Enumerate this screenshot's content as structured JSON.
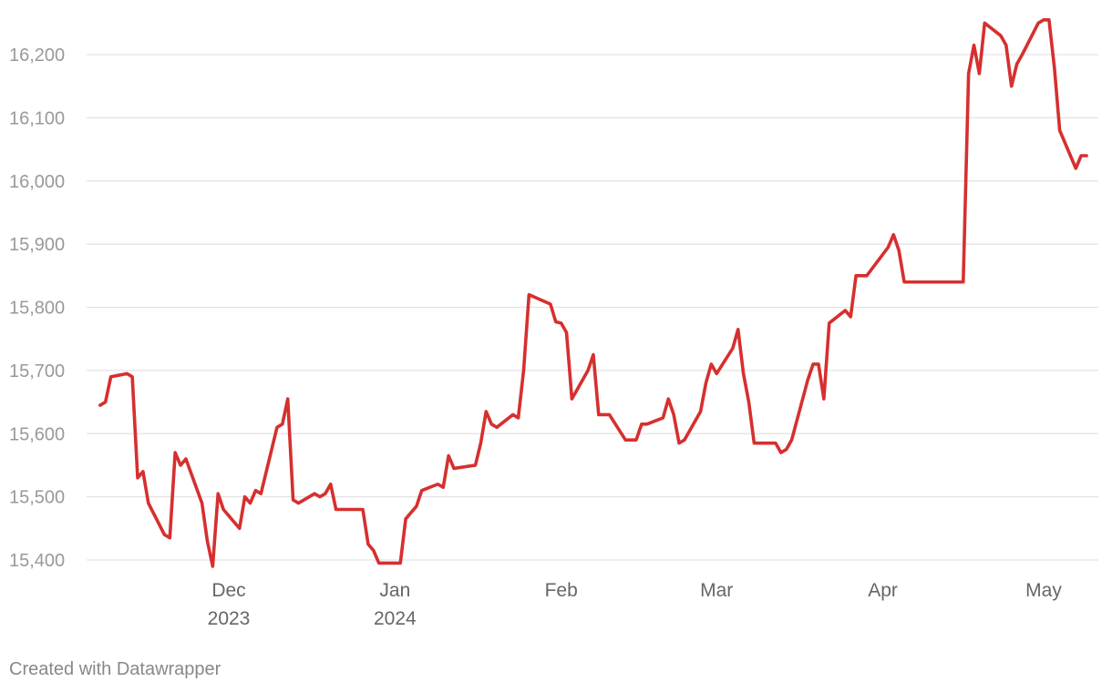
{
  "chart_data": {
    "type": "line",
    "title": "",
    "xlabel": "",
    "ylabel": "",
    "ylim": [
      15400,
      16250
    ],
    "y_ticks": [
      15400,
      15500,
      15600,
      15700,
      15800,
      15900,
      16000,
      16100,
      16200
    ],
    "y_tick_labels": [
      "15,400",
      "15,500",
      "15,600",
      "15,700",
      "15,800",
      "15,900",
      "16,000",
      "16,100",
      "16,200"
    ],
    "x_ticks": [
      {
        "date": "2023-12-01",
        "line1": "Dec",
        "line2": "2023"
      },
      {
        "date": "2024-01-01",
        "line1": "Jan",
        "line2": "2024"
      },
      {
        "date": "2024-02-01",
        "line1": "Feb",
        "line2": ""
      },
      {
        "date": "2024-03-01",
        "line1": "Mar",
        "line2": ""
      },
      {
        "date": "2024-04-01",
        "line1": "Apr",
        "line2": ""
      },
      {
        "date": "2024-05-01",
        "line1": "May",
        "line2": ""
      }
    ],
    "grid": true,
    "legend": "none",
    "series": [
      {
        "color": "#d62f2f",
        "points": [
          [
            "2023-11-07",
            15645
          ],
          [
            "2023-11-08",
            15650
          ],
          [
            "2023-11-09",
            15690
          ],
          [
            "2023-11-12",
            15695
          ],
          [
            "2023-11-13",
            15690
          ],
          [
            "2023-11-14",
            15530
          ],
          [
            "2023-11-15",
            15540
          ],
          [
            "2023-11-16",
            15490
          ],
          [
            "2023-11-19",
            15440
          ],
          [
            "2023-11-20",
            15435
          ],
          [
            "2023-11-21",
            15570
          ],
          [
            "2023-11-22",
            15550
          ],
          [
            "2023-11-23",
            15560
          ],
          [
            "2023-11-26",
            15490
          ],
          [
            "2023-11-27",
            15430
          ],
          [
            "2023-11-28",
            15390
          ],
          [
            "2023-11-29",
            15505
          ],
          [
            "2023-11-30",
            15480
          ],
          [
            "2023-12-03",
            15450
          ],
          [
            "2023-12-04",
            15500
          ],
          [
            "2023-12-05",
            15490
          ],
          [
            "2023-12-06",
            15510
          ],
          [
            "2023-12-07",
            15505
          ],
          [
            "2023-12-10",
            15610
          ],
          [
            "2023-12-11",
            15615
          ],
          [
            "2023-12-12",
            15655
          ],
          [
            "2023-12-13",
            15495
          ],
          [
            "2023-12-14",
            15490
          ],
          [
            "2023-12-17",
            15505
          ],
          [
            "2023-12-18",
            15500
          ],
          [
            "2023-12-19",
            15505
          ],
          [
            "2023-12-20",
            15520
          ],
          [
            "2023-12-21",
            15480
          ],
          [
            "2023-12-26",
            15480
          ],
          [
            "2023-12-27",
            15425
          ],
          [
            "2023-12-28",
            15415
          ],
          [
            "2023-12-29",
            15395
          ],
          [
            "2024-01-02",
            15395
          ],
          [
            "2024-01-03",
            15465
          ],
          [
            "2024-01-04",
            15475
          ],
          [
            "2024-01-05",
            15485
          ],
          [
            "2024-01-06",
            15510
          ],
          [
            "2024-01-09",
            15520
          ],
          [
            "2024-01-10",
            15515
          ],
          [
            "2024-01-11",
            15565
          ],
          [
            "2024-01-12",
            15545
          ],
          [
            "2024-01-16",
            15550
          ],
          [
            "2024-01-17",
            15585
          ],
          [
            "2024-01-18",
            15635
          ],
          [
            "2024-01-19",
            15615
          ],
          [
            "2024-01-20",
            15610
          ],
          [
            "2024-01-23",
            15630
          ],
          [
            "2024-01-24",
            15625
          ],
          [
            "2024-01-25",
            15700
          ],
          [
            "2024-01-26",
            15820
          ],
          [
            "2024-01-30",
            15805
          ],
          [
            "2024-01-31",
            15777
          ],
          [
            "2024-02-01",
            15775
          ],
          [
            "2024-02-02",
            15760
          ],
          [
            "2024-02-03",
            15655
          ],
          [
            "2024-02-06",
            15700
          ],
          [
            "2024-02-07",
            15725
          ],
          [
            "2024-02-08",
            15630
          ],
          [
            "2024-02-10",
            15630
          ],
          [
            "2024-02-13",
            15590
          ],
          [
            "2024-02-15",
            15590
          ],
          [
            "2024-02-16",
            15615
          ],
          [
            "2024-02-17",
            15615
          ],
          [
            "2024-02-20",
            15625
          ],
          [
            "2024-02-21",
            15655
          ],
          [
            "2024-02-22",
            15630
          ],
          [
            "2024-02-23",
            15585
          ],
          [
            "2024-02-24",
            15590
          ],
          [
            "2024-02-27",
            15635
          ],
          [
            "2024-02-28",
            15680
          ],
          [
            "2024-02-29",
            15710
          ],
          [
            "2024-03-01",
            15695
          ],
          [
            "2024-03-04",
            15735
          ],
          [
            "2024-03-05",
            15765
          ],
          [
            "2024-03-06",
            15695
          ],
          [
            "2024-03-07",
            15650
          ],
          [
            "2024-03-08",
            15585
          ],
          [
            "2024-03-12",
            15585
          ],
          [
            "2024-03-13",
            15570
          ],
          [
            "2024-03-14",
            15575
          ],
          [
            "2024-03-15",
            15590
          ],
          [
            "2024-03-18",
            15685
          ],
          [
            "2024-03-19",
            15710
          ],
          [
            "2024-03-20",
            15710
          ],
          [
            "2024-03-21",
            15655
          ],
          [
            "2024-03-22",
            15775
          ],
          [
            "2024-03-25",
            15795
          ],
          [
            "2024-03-26",
            15785
          ],
          [
            "2024-03-27",
            15850
          ],
          [
            "2024-03-29",
            15850
          ],
          [
            "2024-04-02",
            15895
          ],
          [
            "2024-04-03",
            15915
          ],
          [
            "2024-04-04",
            15890
          ],
          [
            "2024-04-05",
            15840
          ],
          [
            "2024-04-16",
            15840
          ],
          [
            "2024-04-17",
            16170
          ],
          [
            "2024-04-18",
            16215
          ],
          [
            "2024-04-19",
            16170
          ],
          [
            "2024-04-20",
            16250
          ],
          [
            "2024-04-23",
            16230
          ],
          [
            "2024-04-24",
            16215
          ],
          [
            "2024-04-25",
            16150
          ],
          [
            "2024-04-26",
            16185
          ],
          [
            "2024-04-27",
            16200
          ],
          [
            "2024-04-30",
            16250
          ],
          [
            "2024-05-01",
            16255
          ],
          [
            "2024-05-02",
            16255
          ],
          [
            "2024-05-03",
            16180
          ],
          [
            "2024-05-04",
            16080
          ],
          [
            "2024-05-07",
            16020
          ],
          [
            "2024-05-08",
            16040
          ],
          [
            "2024-05-09",
            16040
          ]
        ]
      }
    ]
  },
  "footer": {
    "credit": "Created with Datawrapper"
  }
}
